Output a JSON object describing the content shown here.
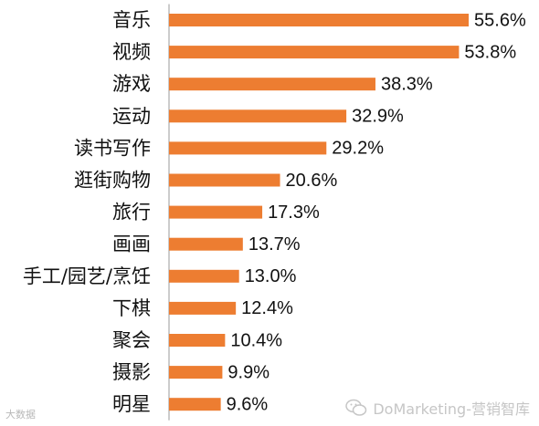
{
  "chart_data": {
    "type": "bar",
    "orientation": "horizontal",
    "categories": [
      "音乐",
      "视频",
      "游戏",
      "运动",
      "读书写作",
      "逛街购物",
      "旅行",
      "画画",
      "手工/园艺/烹饪",
      "下棋",
      "聚会",
      "摄影",
      "明星"
    ],
    "values": [
      55.6,
      53.8,
      38.3,
      32.9,
      29.2,
      20.6,
      17.3,
      13.7,
      13.0,
      12.4,
      10.4,
      9.9,
      9.6
    ],
    "labels": [
      "55.6%",
      "53.8%",
      "38.3%",
      "32.9%",
      "29.2%",
      "20.6%",
      "17.3%",
      "13.7%",
      "13.0%",
      "12.4%",
      "10.4%",
      "9.9%",
      "9.6%"
    ],
    "bar_color": "#ED7D31",
    "xlim": [
      0,
      60
    ],
    "grid": false,
    "legend": "none"
  },
  "watermarks": {
    "left_text": "大数据",
    "right_text": "DoMarketing-营销智库",
    "right_icon": "wechat-icon"
  }
}
